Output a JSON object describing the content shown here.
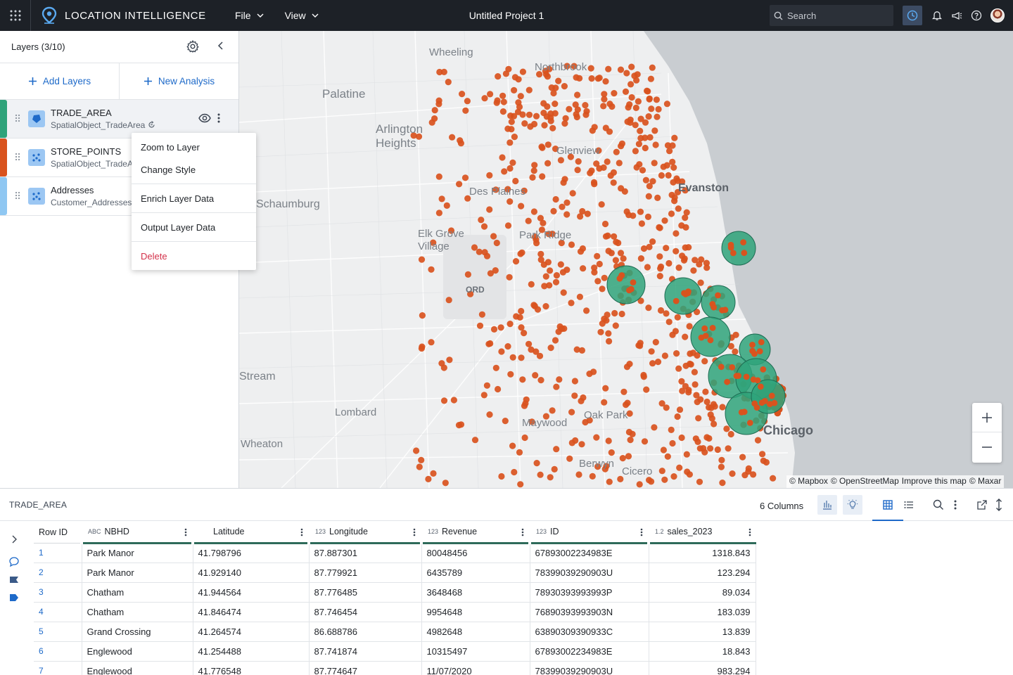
{
  "header": {
    "app_title": "LOCATION INTELLIGENCE",
    "menus": [
      "File",
      "View"
    ],
    "project_title": "Untitled Project 1",
    "search_placeholder": "Search",
    "icons": [
      "grid-menu-icon",
      "pin-logo-icon",
      "clock-icon",
      "bell-icon",
      "megaphone-icon",
      "help-icon"
    ]
  },
  "layers_panel": {
    "title": "Layers (3/10)",
    "add_layers": "Add Layers",
    "new_analysis": "New Analysis",
    "layers": [
      {
        "name": "TRADE_AREA",
        "source": "SpatialObject_TradeArea",
        "color": "#2fa37a",
        "icon": "polygon-icon"
      },
      {
        "name": "STORE_POINTS",
        "source": "SpatialObject_TradeArea",
        "color": "#d9531e",
        "icon": "points-icon"
      },
      {
        "name": "Addresses",
        "source": "Customer_Addresses",
        "color": "#8fc7f2",
        "icon": "points-icon"
      }
    ]
  },
  "context_menu": {
    "items": [
      "Zoom to Layer",
      "Change Style",
      "Enrich Layer Data",
      "Output Layer Data",
      "Delete"
    ]
  },
  "map": {
    "labels": [
      "Wheeling",
      "Northbrook",
      "Palatine",
      "Arlington Heights",
      "Glenview",
      "Des Plaines",
      "Evanston",
      "Schaumburg",
      "Elk Grove Village",
      "Park Ridge",
      "ORD",
      "Stream",
      "Lombard",
      "Maywood",
      "Oak Park",
      "Wheaton",
      "Berwyn",
      "Cicero",
      "Chicago"
    ],
    "attribution": [
      "© Mapbox",
      "© OpenStreetMap",
      "Improve this map",
      "© Maxar"
    ],
    "point_color": "#d9531e",
    "trade_area_color": "#2fa37a"
  },
  "table": {
    "layer_name": "TRADE_AREA",
    "columns_count": "6 Columns",
    "headers": [
      "Row ID",
      "NBHD",
      "Latitude",
      "Longitude",
      "Revenue",
      "ID",
      "sales_2023"
    ],
    "header_types": [
      "",
      "ABC",
      "",
      "123",
      "123",
      "123",
      "1.2"
    ],
    "rows": [
      [
        "1",
        "Park Manor",
        "41.798796",
        "87.887301",
        "80048456",
        "67893002234983E",
        "1318.843"
      ],
      [
        "2",
        "Park Manor",
        "41.929140",
        "87.779921",
        "6435789",
        "78399039290903U",
        "123.294"
      ],
      [
        "3",
        "Chatham",
        "41.944564",
        "87.776485",
        "3648468",
        "78930393993993P",
        "89.034"
      ],
      [
        "4",
        "Chatham",
        "41.846474",
        "87.746454",
        "9954648",
        "76890393993903N",
        "183.039"
      ],
      [
        "5",
        "Grand Crossing",
        "41.264574",
        "86.688786",
        "4982648",
        "63890309390933C",
        "13.839"
      ],
      [
        "6",
        "Englewood",
        "41.254488",
        "87.741874",
        "10315497",
        "67893002234983E",
        "18.843"
      ],
      [
        "7",
        "Englewood",
        "41.776548",
        "87.774647",
        "11/07/2020",
        "78399039290903U",
        "983.294"
      ]
    ]
  }
}
